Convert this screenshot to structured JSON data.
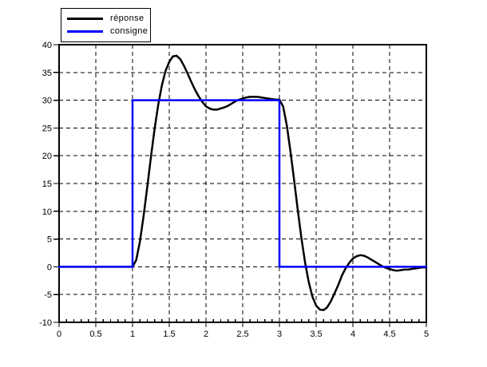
{
  "colors": {
    "background": "#ffffff",
    "axis": "#000000",
    "response": "#000000",
    "setpoint": "#0000ff"
  },
  "chart_data": {
    "type": "line",
    "title": "",
    "xlabel": "",
    "ylabel": "",
    "xlim": [
      0,
      5
    ],
    "ylim": [
      -10,
      40
    ],
    "grid": "dashed",
    "legend_position": "top-left",
    "x_major_ticks": [
      0,
      0.5,
      1,
      1.5,
      2,
      2.5,
      3,
      3.5,
      4,
      4.5,
      5
    ],
    "x_tick_labels": [
      "0",
      "0.5",
      "1",
      "1.5",
      "2",
      "2.5",
      "3",
      "3.5",
      "4",
      "4.5",
      "5"
    ],
    "x_minor_step": 0.1,
    "y_major_ticks": [
      -10,
      -5,
      0,
      5,
      10,
      15,
      20,
      25,
      30,
      35,
      40
    ],
    "y_tick_labels": [
      "-10",
      "-5",
      "0",
      "5",
      "10",
      "15",
      "20",
      "25",
      "30",
      "35",
      "40"
    ],
    "series": [
      {
        "name": "réponse",
        "color": "#000000",
        "points": [
          [
            0,
            0
          ],
          [
            1,
            0
          ],
          [
            1.05,
            1.2
          ],
          [
            1.1,
            4.5
          ],
          [
            1.15,
            9.1
          ],
          [
            1.2,
            14.3
          ],
          [
            1.25,
            19.7
          ],
          [
            1.3,
            24.8
          ],
          [
            1.35,
            29.2
          ],
          [
            1.4,
            32.7
          ],
          [
            1.45,
            35.3
          ],
          [
            1.5,
            36.9
          ],
          [
            1.55,
            37.9
          ],
          [
            1.6,
            38.0
          ],
          [
            1.65,
            37.4
          ],
          [
            1.7,
            36.2
          ],
          [
            1.75,
            34.8
          ],
          [
            1.8,
            33.3
          ],
          [
            1.85,
            31.9
          ],
          [
            1.9,
            30.7
          ],
          [
            1.95,
            29.7
          ],
          [
            2.0,
            28.9
          ],
          [
            2.05,
            28.5
          ],
          [
            2.1,
            28.3
          ],
          [
            2.15,
            28.3
          ],
          [
            2.2,
            28.5
          ],
          [
            2.25,
            28.7
          ],
          [
            2.3,
            29.0
          ],
          [
            2.35,
            29.4
          ],
          [
            2.4,
            29.8
          ],
          [
            2.45,
            30.1
          ],
          [
            2.5,
            30.3
          ],
          [
            2.55,
            30.5
          ],
          [
            2.6,
            30.6
          ],
          [
            2.65,
            30.6
          ],
          [
            2.7,
            30.6
          ],
          [
            2.75,
            30.5
          ],
          [
            2.8,
            30.4
          ],
          [
            2.85,
            30.3
          ],
          [
            2.9,
            30.2
          ],
          [
            2.95,
            30.1
          ],
          [
            3.0,
            30.1
          ],
          [
            3.05,
            28.9
          ],
          [
            3.1,
            25.5
          ],
          [
            3.15,
            20.8
          ],
          [
            3.2,
            15.6
          ],
          [
            3.25,
            10.2
          ],
          [
            3.3,
            5.1
          ],
          [
            3.35,
            0.7
          ],
          [
            3.4,
            -2.8
          ],
          [
            3.45,
            -5.4
          ],
          [
            3.5,
            -7.0
          ],
          [
            3.55,
            -7.7
          ],
          [
            3.6,
            -7.8
          ],
          [
            3.65,
            -7.3
          ],
          [
            3.7,
            -6.2
          ],
          [
            3.75,
            -4.8
          ],
          [
            3.8,
            -3.3
          ],
          [
            3.85,
            -1.6
          ],
          [
            3.9,
            -0.3
          ],
          [
            3.95,
            0.7
          ],
          [
            4.0,
            1.5
          ],
          [
            4.05,
            1.9
          ],
          [
            4.1,
            2.1
          ],
          [
            4.15,
            2.0
          ],
          [
            4.2,
            1.7
          ],
          [
            4.25,
            1.3
          ],
          [
            4.3,
            0.9
          ],
          [
            4.35,
            0.5
          ],
          [
            4.4,
            0.1
          ],
          [
            4.45,
            -0.2
          ],
          [
            4.5,
            -0.4
          ],
          [
            4.55,
            -0.6
          ],
          [
            4.6,
            -0.7
          ],
          [
            4.65,
            -0.6
          ],
          [
            4.7,
            -0.5
          ],
          [
            4.75,
            -0.5
          ],
          [
            4.8,
            -0.4
          ],
          [
            4.85,
            -0.3
          ],
          [
            4.9,
            -0.2
          ],
          [
            4.95,
            -0.1
          ],
          [
            5.0,
            -0.1
          ]
        ]
      },
      {
        "name": "consigne",
        "color": "#0000ff",
        "points": [
          [
            0,
            0
          ],
          [
            1,
            0
          ],
          [
            1,
            30
          ],
          [
            3,
            30
          ],
          [
            3,
            0
          ],
          [
            5,
            0
          ]
        ]
      }
    ]
  }
}
